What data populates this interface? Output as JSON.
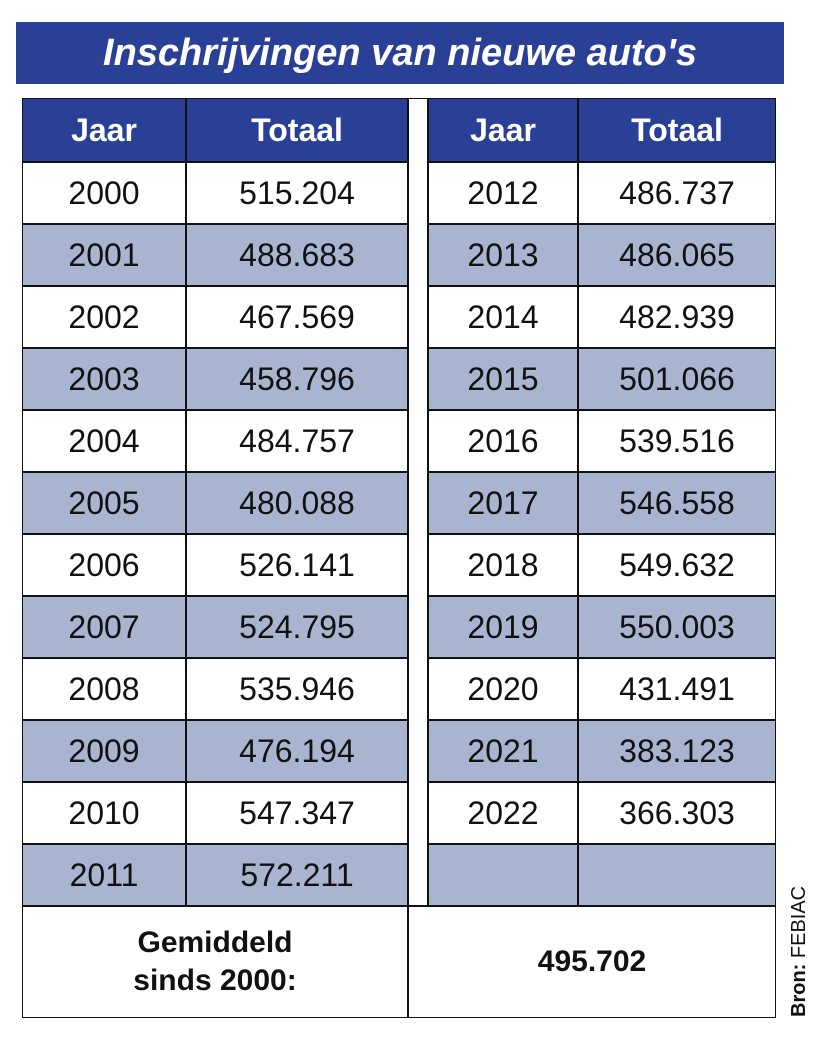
{
  "title": "Inschrijvingen van nieuwe auto's",
  "left": {
    "header": [
      "Jaar",
      "Totaal"
    ],
    "rows": [
      [
        "2000",
        "515.204"
      ],
      [
        "2001",
        "488.683"
      ],
      [
        "2002",
        "467.569"
      ],
      [
        "2003",
        "458.796"
      ],
      [
        "2004",
        "484.757"
      ],
      [
        "2005",
        "480.088"
      ],
      [
        "2006",
        "526.141"
      ],
      [
        "2007",
        "524.795"
      ],
      [
        "2008",
        "535.946"
      ],
      [
        "2009",
        "476.194"
      ],
      [
        "2010",
        "547.347"
      ],
      [
        "2011",
        "572.211"
      ]
    ]
  },
  "right": {
    "header": [
      "Jaar",
      "Totaal"
    ],
    "rows": [
      [
        "2012",
        "486.737"
      ],
      [
        "2013",
        "486.065"
      ],
      [
        "2014",
        "482.939"
      ],
      [
        "2015",
        "501.066"
      ],
      [
        "2016",
        "539.516"
      ],
      [
        "2017",
        "546.558"
      ],
      [
        "2018",
        "549.632"
      ],
      [
        "2019",
        "550.003"
      ],
      [
        "2020",
        "431.491"
      ],
      [
        "2021",
        "383.123"
      ],
      [
        "2022",
        "366.303"
      ]
    ]
  },
  "footer": {
    "label": "Gemiddeld sinds 2000:",
    "value": "495.702"
  },
  "source": {
    "label": "Bron:",
    "name": "FEBIAC"
  }
}
